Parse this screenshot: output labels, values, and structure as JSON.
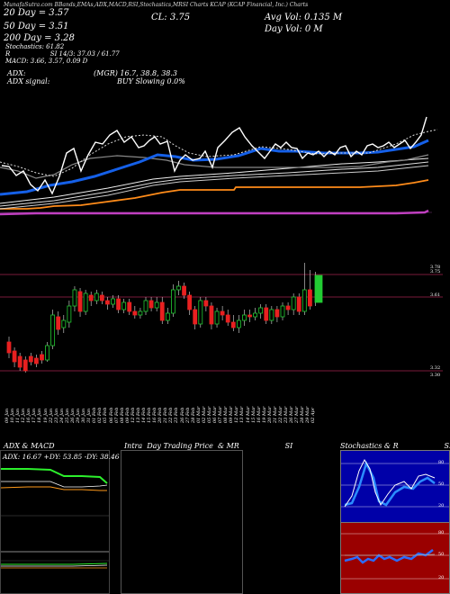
{
  "header": {
    "top_line": "MunafaSutra.com BBands,EMAs,ADX,MACD,RSI,Stochastics,MRSI Charts KCAP (KCAP Financial, Inc.) Charts",
    "cl": "CL: 3.75",
    "avg_vol": "Avg Vol: 0.135  M",
    "day_vol": "Day Vol: 0  M",
    "ema20": "20  Day = 3.57",
    "ema50": "50  Day = 3.51",
    "ema200": "200  Day = 3.28",
    "stochastics": "Stochastics: 61.82",
    "rsi": "R                    SI 14/3: 37.03 / 61.77",
    "macd": "MACD: 3.66, 3.57, 0.09 D",
    "adx_label": "ADX:",
    "adx_values": "(MGR) 16.7, 38.8, 38.3",
    "adx_signal_label": "ADX  signal:",
    "adx_signal": "BUY Slowing 0.0%"
  },
  "candle_chart": {
    "price_labels": [
      "3.78",
      "3.75",
      "3.61",
      "3.32",
      "3.30"
    ],
    "dates": [
      "09 Jan",
      "10 Jan",
      "11 Jan",
      "12 Jan",
      "16 Jan",
      "17 Jan",
      "18 Jan",
      "19 Jan",
      "22 Jan",
      "23 Jan",
      "24 Jan",
      "25 Jan",
      "26 Jan",
      "29 Jan",
      "30 Jan",
      "31 Jan",
      "01 Feb",
      "02 Feb",
      "05 Feb",
      "06 Feb",
      "07 Feb",
      "08 Feb",
      "09 Feb",
      "12 Feb",
      "13 Feb",
      "14 Feb",
      "15 Feb",
      "16 Feb",
      "20 Feb",
      "21 Feb",
      "22 Feb",
      "23 Feb",
      "26 Feb",
      "27 Feb",
      "28 Feb",
      "01 Mar",
      "02 Mar",
      "05 Mar",
      "06 Mar",
      "07 Mar",
      "08 Mar",
      "09 Mar",
      "12 Mar",
      "13 Mar",
      "14 Mar",
      "15 Mar",
      "16 Mar",
      "19 Mar",
      "20 Mar",
      "21 Mar",
      "22 Mar",
      "23 Mar",
      "26 Mar",
      "27 Mar",
      "28 Mar",
      "29 Mar",
      "02 Apr"
    ]
  },
  "panels": {
    "adx_title": "ADX  & MACD",
    "adx_readout": "ADX: 16.67 +DY: 53.85 -DY: 38.46",
    "intraday_title": "Intra  Day Trading Price  & MR                    SI",
    "stoch_title": "Stochastics & R                    SI",
    "stoch_ticks": [
      "80",
      "50",
      "20"
    ],
    "rsi_ticks": [
      "80",
      "50",
      "20"
    ]
  },
  "colors": {
    "ema_blue": "#1560e8",
    "ema_orange": "#ff8c1a",
    "ema_purple": "#c040c0",
    "candle_green": "#22cc33",
    "candle_red": "#e82020",
    "adx_green": "#2cf02c",
    "adx_orange": "#ff9a1a",
    "stoch_bg": "#0000a8",
    "rsi_bg": "#9a0000"
  }
}
